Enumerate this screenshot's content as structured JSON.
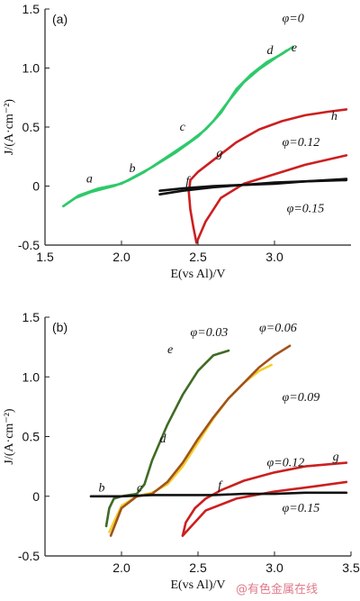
{
  "colors": {
    "phi0": "#2ec96a",
    "phi012": "#cc1f1f",
    "phi015": "#111111",
    "phi003": "#3f6b25",
    "phi006": "#f2cf2a",
    "phi009": "#a0521c",
    "axis": "#222222"
  },
  "watermark": "@有色金属在线",
  "chart_data": [
    {
      "type": "line",
      "panel_label": "(a)",
      "xlabel": "E(vs Al)/V",
      "ylabel": "J/(A·cm⁻²)",
      "xlim": [
        1.5,
        3.5
      ],
      "ylim": [
        -0.5,
        1.5
      ],
      "xticks": [
        1.5,
        2.0,
        2.5,
        3.0
      ],
      "yticks": [
        -0.5,
        0,
        0.5,
        1.0,
        1.5
      ],
      "xtick_labels": [
        "1.5",
        "2.0",
        "2.5",
        "3.0"
      ],
      "ytick_labels": [
        "-0.5",
        "0",
        "0.5",
        "1.0",
        "1.5"
      ],
      "series": [
        {
          "name": "φ=0",
          "color": "#2ec96a",
          "x": [
            1.62,
            1.7,
            1.8,
            1.95,
            2.05,
            2.15,
            2.3,
            2.45,
            2.55,
            2.65,
            2.75,
            2.85,
            2.95,
            3.05,
            3.12
          ],
          "y": [
            -0.17,
            -0.1,
            -0.05,
            0.0,
            0.05,
            0.12,
            0.25,
            0.38,
            0.48,
            0.62,
            0.82,
            0.95,
            1.05,
            1.12,
            1.18
          ]
        },
        {
          "name": "",
          "color": "#2ec96a",
          "x": [
            1.62,
            1.72,
            1.85,
            2.0,
            2.1,
            2.2,
            2.35,
            2.5,
            2.6,
            2.7,
            2.8,
            2.9,
            3.0,
            3.08
          ],
          "y": [
            -0.17,
            -0.08,
            -0.02,
            0.02,
            0.09,
            0.16,
            0.28,
            0.42,
            0.55,
            0.72,
            0.88,
            0.99,
            1.08,
            1.15
          ]
        },
        {
          "name": "φ=0.12",
          "color": "#cc1f1f",
          "x": [
            2.49,
            2.47,
            2.45,
            2.44,
            2.45,
            2.5,
            2.6,
            2.75,
            2.9,
            3.05,
            3.2,
            3.35,
            3.47
          ],
          "y": [
            -0.48,
            -0.35,
            -0.2,
            -0.05,
            0.05,
            0.12,
            0.22,
            0.37,
            0.48,
            0.55,
            0.6,
            0.63,
            0.65
          ]
        },
        {
          "name": "",
          "color": "#cc1f1f",
          "x": [
            2.49,
            2.55,
            2.65,
            2.8,
            3.0,
            3.2,
            3.47
          ],
          "y": [
            -0.48,
            -0.3,
            -0.1,
            0.02,
            0.1,
            0.18,
            0.26
          ]
        },
        {
          "name": "φ=0.15",
          "color": "#111111",
          "x": [
            2.25,
            2.4,
            2.6,
            2.8,
            3.0,
            3.2,
            3.47
          ],
          "y": [
            -0.07,
            -0.04,
            -0.01,
            0.01,
            0.02,
            0.04,
            0.05
          ]
        },
        {
          "name": "",
          "color": "#111111",
          "x": [
            2.25,
            2.4,
            2.6,
            2.8,
            3.0,
            3.2,
            3.47
          ],
          "y": [
            -0.04,
            -0.02,
            0.0,
            0.01,
            0.03,
            0.04,
            0.06
          ]
        }
      ],
      "annotations": [
        {
          "text": "φ=0",
          "x": 3.05,
          "y": 1.39
        },
        {
          "text": "a",
          "x": 1.77,
          "y": 0.03
        },
        {
          "text": "b",
          "x": 2.05,
          "y": 0.12
        },
        {
          "text": "c",
          "x": 2.38,
          "y": 0.47
        },
        {
          "text": "d",
          "x": 2.95,
          "y": 1.12
        },
        {
          "text": "e",
          "x": 3.11,
          "y": 1.14
        },
        {
          "text": "f",
          "x": 2.42,
          "y": 0.01
        },
        {
          "text": "g",
          "x": 2.62,
          "y": 0.25
        },
        {
          "text": "h",
          "x": 3.37,
          "y": 0.56
        },
        {
          "text": "φ=0.12",
          "x": 3.05,
          "y": 0.34
        },
        {
          "text": "φ=0.15",
          "x": 3.08,
          "y": -0.22
        }
      ]
    },
    {
      "type": "line",
      "panel_label": "(b)",
      "xlabel": "E(vs Al)/V",
      "ylabel": "J/(A·cm⁻²)",
      "xlim": [
        1.5,
        3.5
      ],
      "ylim": [
        -0.5,
        1.5
      ],
      "xticks": [
        2.0,
        2.5,
        3.0,
        3.5
      ],
      "yticks": [
        -0.5,
        0,
        0.5,
        1.0,
        1.5
      ],
      "xtick_labels": [
        "2.0",
        "2.5",
        "3.0",
        "3.5"
      ],
      "ytick_labels": [
        "-0.5",
        "0",
        "0.5",
        "1.0",
        "1.5"
      ],
      "series": [
        {
          "name": "φ=0.03",
          "color": "#3f6b25",
          "x": [
            1.9,
            1.92,
            1.95,
            2.0,
            2.05,
            2.1,
            2.15,
            2.2,
            2.3,
            2.4,
            2.5,
            2.6,
            2.7
          ],
          "y": [
            -0.25,
            -0.1,
            -0.02,
            0.0,
            0.01,
            0.02,
            0.1,
            0.3,
            0.6,
            0.85,
            1.05,
            1.18,
            1.22
          ]
        },
        {
          "name": "φ=0.06",
          "color": "#f2cf2a",
          "x": [
            1.92,
            2.0,
            2.1,
            2.2,
            2.3,
            2.4,
            2.5,
            2.6,
            2.7,
            2.8,
            2.9,
            2.98
          ],
          "y": [
            -0.3,
            -0.08,
            0.0,
            0.03,
            0.1,
            0.25,
            0.45,
            0.65,
            0.82,
            0.95,
            1.05,
            1.1
          ]
        },
        {
          "name": "φ=0.09",
          "color": "#a0521c",
          "x": [
            1.93,
            2.0,
            2.1,
            2.2,
            2.3,
            2.4,
            2.5,
            2.6,
            2.7,
            2.8,
            2.9,
            3.0,
            3.1
          ],
          "y": [
            -0.33,
            -0.1,
            0.0,
            0.02,
            0.12,
            0.28,
            0.48,
            0.66,
            0.82,
            0.95,
            1.08,
            1.18,
            1.26
          ]
        },
        {
          "name": "φ=0.12",
          "color": "#cc1f1f",
          "x": [
            2.4,
            2.42,
            2.48,
            2.55,
            2.65,
            2.8,
            3.0,
            3.2,
            3.47
          ],
          "y": [
            -0.33,
            -0.22,
            -0.1,
            -0.02,
            0.05,
            0.13,
            0.2,
            0.25,
            0.28
          ]
        },
        {
          "name": "",
          "color": "#cc1f1f",
          "x": [
            2.4,
            2.55,
            2.75,
            3.0,
            3.25,
            3.47
          ],
          "y": [
            -0.33,
            -0.12,
            -0.02,
            0.04,
            0.08,
            0.12
          ]
        },
        {
          "name": "φ=0.15",
          "color": "#111111",
          "x": [
            1.8,
            2.0,
            2.2,
            2.4,
            2.6,
            2.8,
            3.0,
            3.2,
            3.47
          ],
          "y": [
            0.0,
            0.0,
            0.01,
            0.01,
            0.01,
            0.02,
            0.02,
            0.03,
            0.03
          ]
        }
      ],
      "annotations": [
        {
          "text": "φ=0.03",
          "x": 2.45,
          "y": 1.34
        },
        {
          "text": "φ=0.06",
          "x": 2.9,
          "y": 1.38
        },
        {
          "text": "φ=0.09",
          "x": 3.05,
          "y": 0.8
        },
        {
          "text": "e",
          "x": 2.3,
          "y": 1.2
        },
        {
          "text": "d",
          "x": 2.25,
          "y": 0.45
        },
        {
          "text": "b",
          "x": 1.85,
          "y": 0.04
        },
        {
          "text": "c",
          "x": 2.1,
          "y": 0.04
        },
        {
          "text": "f",
          "x": 2.63,
          "y": 0.06
        },
        {
          "text": "g",
          "x": 3.38,
          "y": 0.3
        },
        {
          "text": "φ=0.12",
          "x": 2.95,
          "y": 0.25
        },
        {
          "text": "φ=0.15",
          "x": 3.05,
          "y": -0.13
        }
      ]
    }
  ]
}
